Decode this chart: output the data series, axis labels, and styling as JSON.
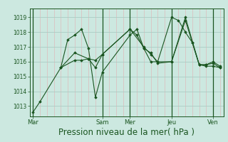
{
  "background_color": "#cce8e0",
  "grid_major_color": "#aaccc4",
  "grid_minor_color": "#ddbbbb",
  "line_color": "#1a5520",
  "marker_color": "#1a5520",
  "xlabel": "Pression niveau de la mer( hPa )",
  "xlabel_fontsize": 8.5,
  "yticks": [
    1013,
    1014,
    1015,
    1016,
    1017,
    1018,
    1019
  ],
  "ylim": [
    1012.3,
    1019.6
  ],
  "xtick_labels": [
    "Mar",
    "Sam",
    "Mer",
    "Jeu",
    "Ven"
  ],
  "xtick_positions": [
    0,
    10,
    14,
    20,
    26
  ],
  "n_minor_x": 27,
  "xlim": [
    -0.5,
    27.5
  ],
  "series": [
    [
      0,
      1012.6,
      1,
      1013.3,
      4,
      1015.6,
      6,
      1016.6,
      8,
      1016.2,
      9,
      1016.1,
      10,
      1016.5,
      14,
      1018.2,
      15,
      1017.8,
      16,
      1016.9,
      17,
      1016.6,
      18,
      1015.9,
      20,
      1016.0,
      22,
      1019.0,
      24,
      1015.8,
      25,
      1015.8,
      26,
      1016.0,
      27,
      1015.7
    ],
    [
      4,
      1015.6,
      6,
      1016.1,
      7,
      1016.1,
      8,
      1016.2,
      9,
      1015.6,
      10,
      1016.5,
      14,
      1018.2,
      16,
      1017.0,
      17,
      1016.5,
      18,
      1016.0,
      20,
      1016.0,
      22,
      1018.8,
      23,
      1017.3,
      24,
      1015.8,
      25,
      1015.7,
      26,
      1015.7,
      27,
      1015.6
    ],
    [
      4,
      1015.6,
      5,
      1017.5,
      6,
      1017.8,
      7,
      1018.2,
      8,
      1016.9,
      9,
      1013.6,
      10,
      1015.3,
      14,
      1017.8,
      15,
      1018.2,
      16,
      1016.9,
      17,
      1016.0,
      18,
      1016.0,
      20,
      1019.0,
      21,
      1018.8,
      22,
      1018.0,
      23,
      1017.3,
      24,
      1015.8,
      25,
      1015.8,
      26,
      1015.9,
      27,
      1015.6
    ]
  ]
}
